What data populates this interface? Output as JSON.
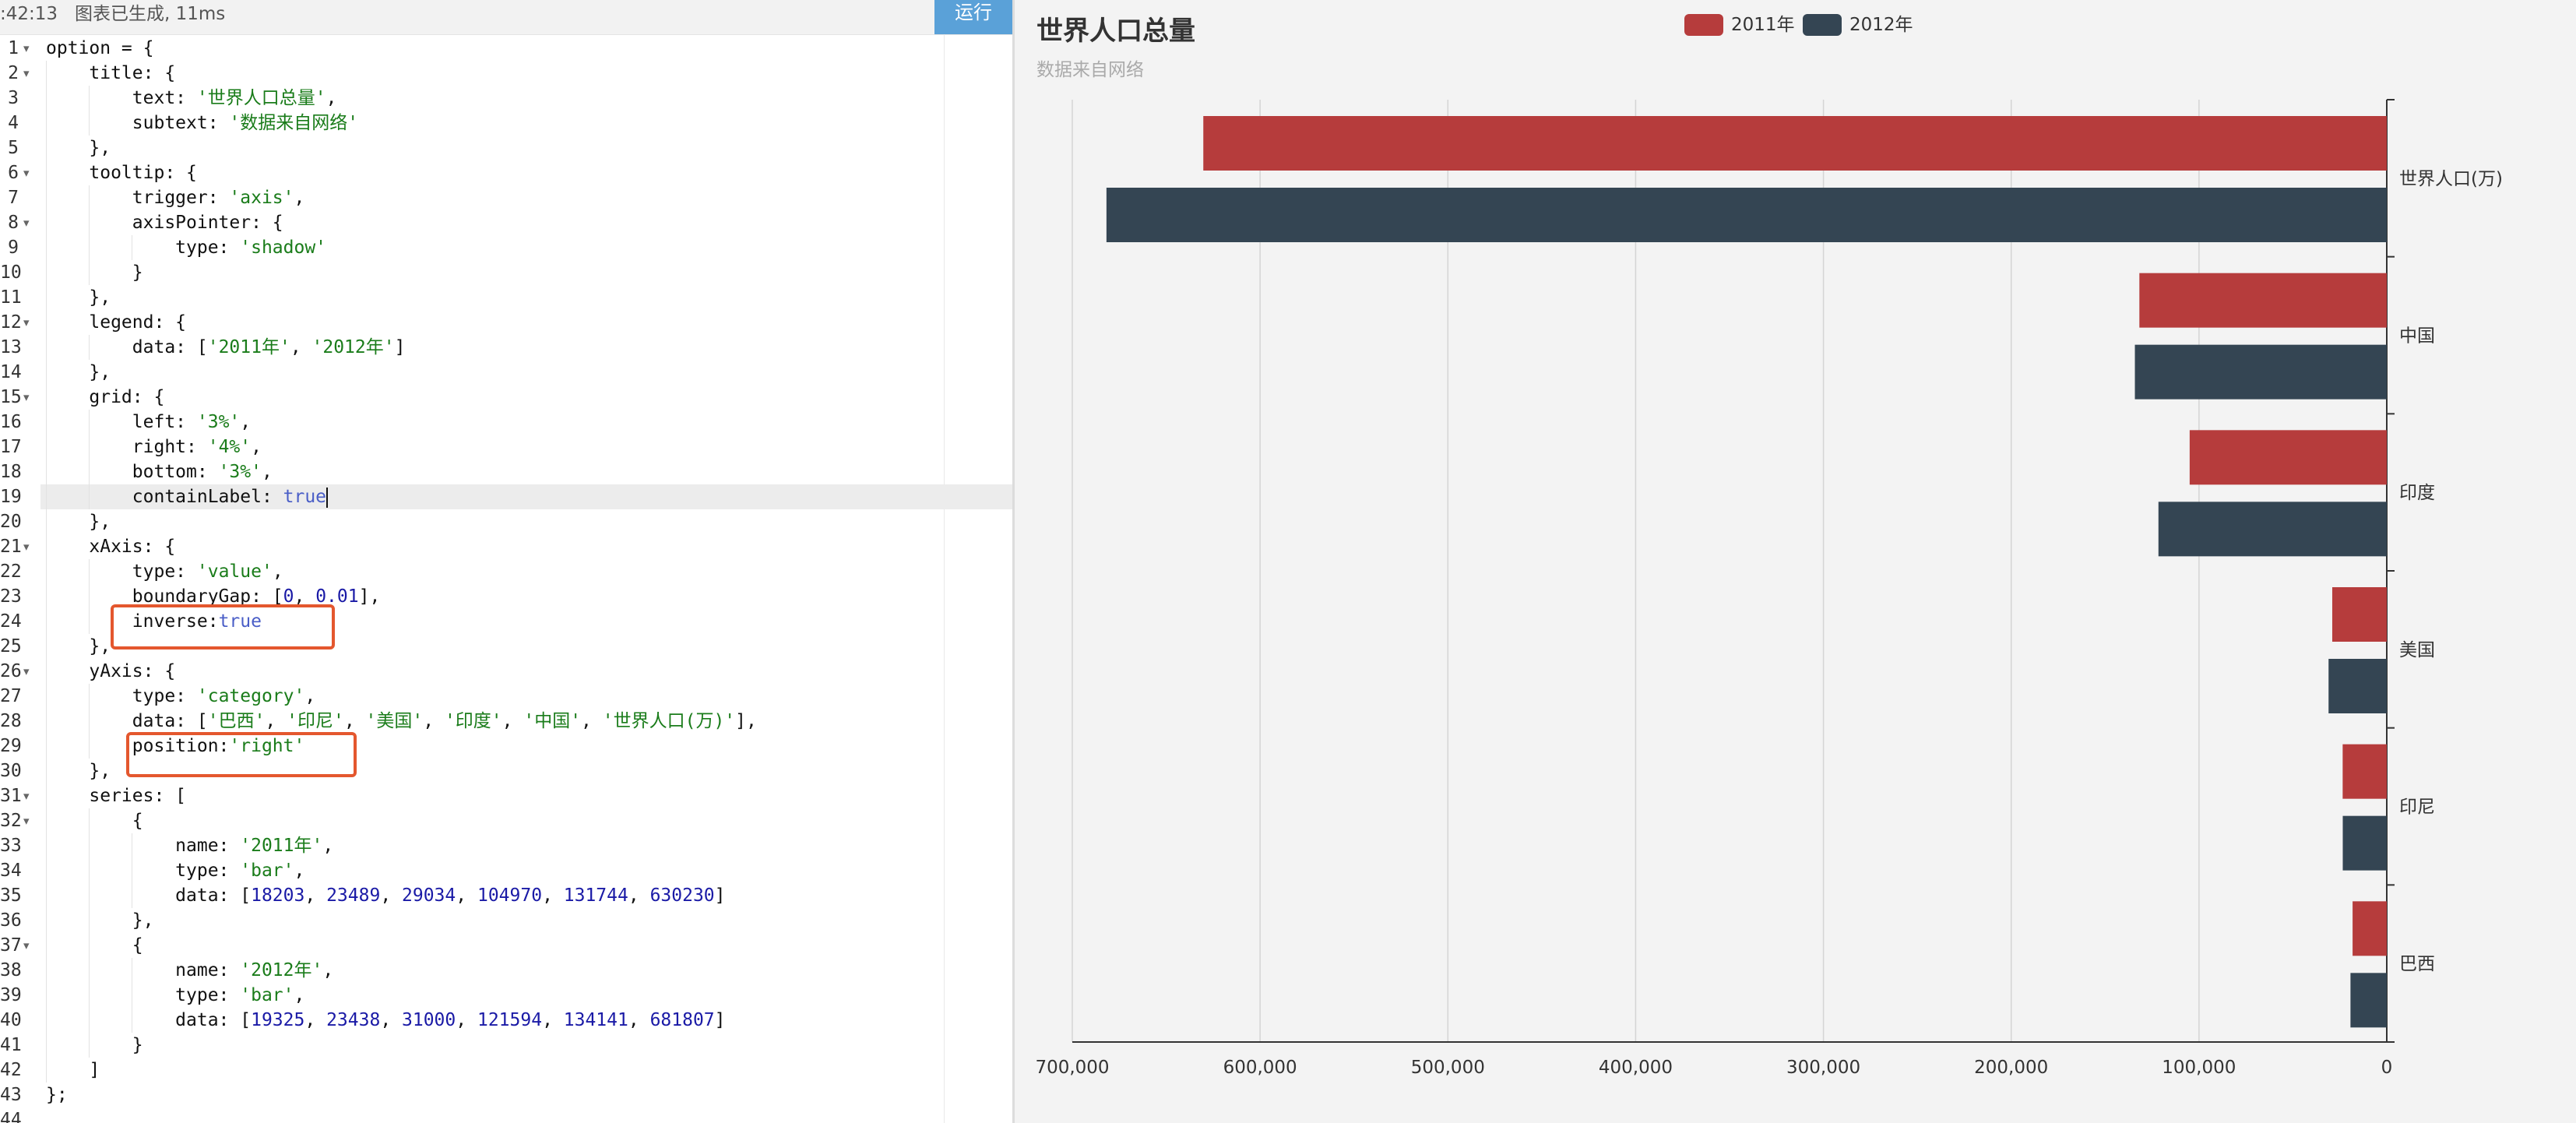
{
  "editor": {
    "status_text": ":42:13   图表已生成, 11ms",
    "run_label": "运行",
    "lines": [
      {
        "n": "1",
        "fold": true,
        "ind": 0,
        "html": "option = {"
      },
      {
        "n": "2",
        "fold": true,
        "ind": 1,
        "html": "    title: {"
      },
      {
        "n": "3",
        "fold": false,
        "ind": 2,
        "html": "        text: <span class='s'>'世界人口总量'</span>,"
      },
      {
        "n": "4",
        "fold": false,
        "ind": 2,
        "html": "        subtext: <span class='s'>'数据来自网络'</span>"
      },
      {
        "n": "5",
        "fold": false,
        "ind": 1,
        "html": "    },"
      },
      {
        "n": "6",
        "fold": true,
        "ind": 1,
        "html": "    tooltip: {"
      },
      {
        "n": "7",
        "fold": false,
        "ind": 2,
        "html": "        trigger: <span class='s'>'axis'</span>,"
      },
      {
        "n": "8",
        "fold": true,
        "ind": 2,
        "html": "        axisPointer: {"
      },
      {
        "n": "9",
        "fold": false,
        "ind": 3,
        "html": "            type: <span class='s'>'shadow'</span>"
      },
      {
        "n": "10",
        "fold": false,
        "ind": 2,
        "html": "        }"
      },
      {
        "n": "11",
        "fold": false,
        "ind": 1,
        "html": "    },"
      },
      {
        "n": "12",
        "fold": true,
        "ind": 1,
        "html": "    legend: {"
      },
      {
        "n": "13",
        "fold": false,
        "ind": 2,
        "html": "        data: [<span class='s'>'2011年'</span>, <span class='s'>'2012年'</span>]"
      },
      {
        "n": "14",
        "fold": false,
        "ind": 1,
        "html": "    },"
      },
      {
        "n": "15",
        "fold": true,
        "ind": 1,
        "html": "    grid: {"
      },
      {
        "n": "16",
        "fold": false,
        "ind": 2,
        "html": "        left: <span class='s'>'3%'</span>,"
      },
      {
        "n": "17",
        "fold": false,
        "ind": 2,
        "html": "        right: <span class='s'>'4%'</span>,"
      },
      {
        "n": "18",
        "fold": false,
        "ind": 2,
        "html": "        bottom: <span class='s'>'3%'</span>,"
      },
      {
        "n": "19",
        "fold": false,
        "ind": 2,
        "html": "        containLabel: <span class='b'>true</span><span class='cursor'></span>"
      },
      {
        "n": "20",
        "fold": false,
        "ind": 1,
        "html": "    },"
      },
      {
        "n": "21",
        "fold": true,
        "ind": 1,
        "html": "    xAxis: {"
      },
      {
        "n": "22",
        "fold": false,
        "ind": 2,
        "html": "        type: <span class='s'>'value'</span>,"
      },
      {
        "n": "23",
        "fold": false,
        "ind": 2,
        "html": "        boundaryGap: [<span class='n'>0</span>, <span class='n'>0.01</span>],"
      },
      {
        "n": "24",
        "fold": false,
        "ind": 2,
        "html": "        inverse:<span class='b'>true</span>"
      },
      {
        "n": "25",
        "fold": false,
        "ind": 1,
        "html": "    },"
      },
      {
        "n": "26",
        "fold": true,
        "ind": 1,
        "html": "    yAxis: {"
      },
      {
        "n": "27",
        "fold": false,
        "ind": 2,
        "html": "        type: <span class='s'>'category'</span>,"
      },
      {
        "n": "28",
        "fold": false,
        "ind": 2,
        "html": "        data: [<span class='s'>'巴西'</span>, <span class='s'>'印尼'</span>, <span class='s'>'美国'</span>, <span class='s'>'印度'</span>, <span class='s'>'中国'</span>, <span class='s'>'世界人口(万)'</span>],"
      },
      {
        "n": "29",
        "fold": false,
        "ind": 2,
        "html": "        position:<span class='s'>'right'</span>"
      },
      {
        "n": "30",
        "fold": false,
        "ind": 1,
        "html": "    },"
      },
      {
        "n": "31",
        "fold": true,
        "ind": 1,
        "html": "    series: ["
      },
      {
        "n": "32",
        "fold": true,
        "ind": 2,
        "html": "        {"
      },
      {
        "n": "33",
        "fold": false,
        "ind": 3,
        "html": "            name: <span class='s'>'2011年'</span>,"
      },
      {
        "n": "34",
        "fold": false,
        "ind": 3,
        "html": "            type: <span class='s'>'bar'</span>,"
      },
      {
        "n": "35",
        "fold": false,
        "ind": 3,
        "html": "            data: [<span class='n'>18203</span>, <span class='n'>23489</span>, <span class='n'>29034</span>, <span class='n'>104970</span>, <span class='n'>131744</span>, <span class='n'>630230</span>]"
      },
      {
        "n": "36",
        "fold": false,
        "ind": 2,
        "html": "        },"
      },
      {
        "n": "37",
        "fold": true,
        "ind": 2,
        "html": "        {"
      },
      {
        "n": "38",
        "fold": false,
        "ind": 3,
        "html": "            name: <span class='s'>'2012年'</span>,"
      },
      {
        "n": "39",
        "fold": false,
        "ind": 3,
        "html": "            type: <span class='s'>'bar'</span>,"
      },
      {
        "n": "40",
        "fold": false,
        "ind": 3,
        "html": "            data: [<span class='n'>19325</span>, <span class='n'>23438</span>, <span class='n'>31000</span>, <span class='n'>121594</span>, <span class='n'>134141</span>, <span class='n'>681807</span>]"
      },
      {
        "n": "41",
        "fold": false,
        "ind": 2,
        "html": "        }"
      },
      {
        "n": "42",
        "fold": false,
        "ind": 1,
        "html": "    ]"
      },
      {
        "n": "43",
        "fold": false,
        "ind": 0,
        "html": "};"
      },
      {
        "n": "44",
        "fold": false,
        "ind": 0,
        "html": ""
      }
    ]
  },
  "chart": {
    "title": "世界人口总量",
    "subtitle": "数据来自网络",
    "legend": [
      {
        "name": "2011年",
        "color": "#b63c3c"
      },
      {
        "name": "2012年",
        "color": "#344553"
      }
    ]
  },
  "chart_data": {
    "type": "bar",
    "orientation": "horizontal",
    "x_inverse": true,
    "y_axis_position": "right",
    "grid": true,
    "legend_position": "top-center",
    "title": "世界人口总量",
    "subtitle": "数据来自网络",
    "categories": [
      "巴西",
      "印尼",
      "美国",
      "印度",
      "中国",
      "世界人口(万)"
    ],
    "series": [
      {
        "name": "2011年",
        "color": "#b63c3c",
        "values": [
          18203,
          23489,
          29034,
          104970,
          131744,
          630230
        ]
      },
      {
        "name": "2012年",
        "color": "#344553",
        "values": [
          19325,
          23438,
          31000,
          121594,
          134141,
          681807
        ]
      }
    ],
    "xlim": [
      0,
      700000
    ],
    "x_ticks": [
      0,
      100000,
      200000,
      300000,
      400000,
      500000,
      600000,
      700000
    ],
    "x_tick_labels": [
      "0",
      "100,000",
      "200,000",
      "300,000",
      "400,000",
      "500,000",
      "600,000",
      "700,000"
    ]
  }
}
